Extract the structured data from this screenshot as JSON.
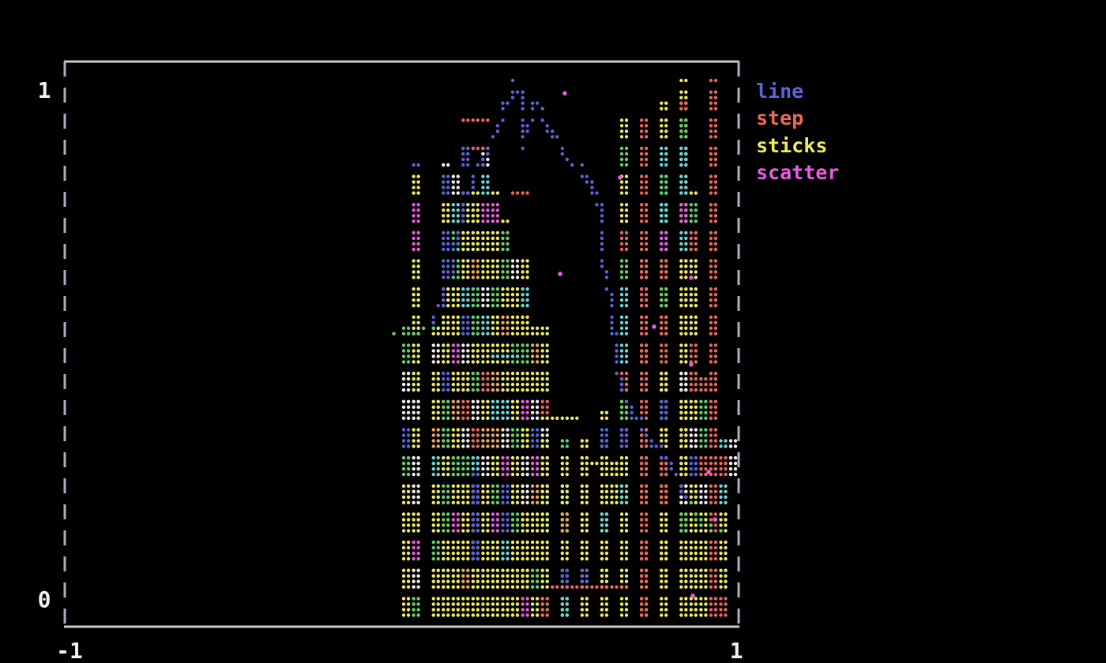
{
  "figure": {
    "background": "#000000",
    "border_solid_color": "#c9c9c9",
    "border_dash_color": "#a9b2c0"
  },
  "colors": {
    "blue": "#5b66de",
    "red": "#ee675d",
    "yellow": "#f1ee5e",
    "magenta": "#eb5ce3",
    "green": "#63d36c",
    "cyan": "#67dadb",
    "white": "#f2f2f2",
    "orange": "#efa75c",
    "label": "#f2f2f2"
  },
  "axis": {
    "y_top_label": "1",
    "y_bottom_label": "0",
    "x_left_label": "-1",
    "x_right_label": "1",
    "xlim": [
      -1,
      1
    ],
    "ylim": [
      0,
      1
    ]
  },
  "legend": {
    "position": "outside-top-right",
    "items": [
      {
        "label": "line",
        "color": "blue"
      },
      {
        "label": "step",
        "color": "red"
      },
      {
        "label": "sticks",
        "color": "yellow"
      },
      {
        "label": "scatter",
        "color": "magenta"
      }
    ]
  },
  "chart_data": {
    "type": "mixed-terminal-braille",
    "xlim": [
      -1,
      1
    ],
    "ylim": [
      0,
      1
    ],
    "grid": false,
    "series": [
      {
        "name": "line",
        "type": "line",
        "color": "blue",
        "points": [
          [
            -0.02,
            0.51
          ],
          [
            0.093,
            0.538
          ],
          [
            0.149,
            0.659
          ],
          [
            0.191,
            0.785
          ],
          [
            0.243,
            0.852
          ],
          [
            0.28,
            0.904
          ],
          [
            0.308,
            0.959
          ],
          [
            0.336,
            0.981
          ],
          [
            0.346,
            0.973
          ],
          [
            0.351,
            0.904
          ],
          [
            0.355,
            0.867
          ],
          [
            0.374,
            0.919
          ],
          [
            0.397,
            0.959
          ],
          [
            0.426,
            0.911
          ],
          [
            0.449,
            0.884
          ],
          [
            0.477,
            0.864
          ],
          [
            0.503,
            0.837
          ],
          [
            0.531,
            0.827
          ],
          [
            0.55,
            0.81
          ],
          [
            0.571,
            0.784
          ],
          [
            0.583,
            0.76
          ],
          [
            0.587,
            0.719
          ],
          [
            0.597,
            0.671
          ],
          [
            0.604,
            0.627
          ],
          [
            0.613,
            0.57
          ],
          [
            0.618,
            0.533
          ],
          [
            0.63,
            0.514
          ],
          [
            0.634,
            0.464
          ],
          [
            0.644,
            0.419
          ],
          [
            0.655,
            0.4
          ],
          [
            0.683,
            0.367
          ],
          [
            0.719,
            0.33
          ],
          [
            0.754,
            0.304
          ],
          [
            0.796,
            0.274
          ],
          [
            0.815,
            0.253
          ],
          [
            0.838,
            0.218
          ],
          [
            0.866,
            0.182
          ],
          [
            0.894,
            0.159
          ],
          [
            0.923,
            0.156
          ],
          [
            0.946,
            0.153
          ]
        ]
      },
      {
        "name": "step",
        "type": "step",
        "color": "red",
        "segments": [
          {
            "t": "h",
            "x1": 0.175,
            "x2": 0.245,
            "y": 0.926
          },
          {
            "t": "h",
            "x1": 0.175,
            "x2": 0.233,
            "y": 0.874
          },
          {
            "t": "h",
            "x1": 0.315,
            "x2": 0.355,
            "y": 0.778
          },
          {
            "t": "v",
            "x": 0.707,
            "y1": 0.0,
            "y2": 0.926
          },
          {
            "t": "v",
            "x": 0.932,
            "y1": 0.0,
            "y2": 1.0
          },
          {
            "t": "v",
            "x": 0.871,
            "y1": 0.407,
            "y2": 0.433
          },
          {
            "t": "h",
            "x1": 0.871,
            "x2": 0.913,
            "y": 0.407
          },
          {
            "t": "v",
            "x": 0.913,
            "y1": 0.407,
            "y2": 0.433
          },
          {
            "t": "h",
            "x1": 0.449,
            "x2": 0.547,
            "y": 0.03
          },
          {
            "t": "h",
            "x1": 0.562,
            "x2": 0.648,
            "y": 0.03
          }
        ]
      },
      {
        "name": "sticks",
        "type": "sticks",
        "color": "yellow",
        "points": [
          [
            -0.008,
            0.536
          ],
          [
            0.05,
            0.837
          ],
          [
            0.081,
            0.536
          ],
          [
            0.111,
            0.837
          ],
          [
            0.14,
            0.833
          ],
          [
            0.17,
            0.788
          ],
          [
            0.198,
            0.785
          ],
          [
            0.229,
            0.884
          ],
          [
            0.257,
            0.785
          ],
          [
            0.287,
            0.736
          ],
          [
            0.315,
            0.655
          ],
          [
            0.346,
            0.655
          ],
          [
            0.374,
            0.529
          ],
          [
            0.404,
            0.529
          ],
          [
            0.432,
            0.321
          ],
          [
            0.463,
            0.321
          ],
          [
            0.491,
            0.247
          ],
          [
            0.522,
            0.321
          ],
          [
            0.55,
            0.247
          ],
          [
            0.58,
            0.319
          ],
          [
            0.608,
            0.378
          ],
          [
            0.639,
            0.434
          ],
          [
            0.667,
            0.93
          ],
          [
            0.726,
            0.655
          ],
          [
            0.756,
            0.833
          ],
          [
            0.784,
            0.956
          ],
          [
            0.815,
            1.0
          ],
          [
            0.843,
            0.956
          ],
          [
            0.873,
            0.788
          ],
          [
            0.901,
            0.433
          ],
          [
            0.96,
            0.326
          ]
        ]
      },
      {
        "name": "scatter",
        "type": "scatter",
        "color": "magenta",
        "points": [
          [
            0.484,
            0.973
          ],
          [
            0.648,
            0.815
          ],
          [
            0.47,
            0.634
          ],
          [
            0.859,
            0.627
          ],
          [
            0.749,
            0.535
          ],
          [
            0.859,
            0.464
          ],
          [
            0.911,
            0.262
          ],
          [
            0.93,
            0.173
          ],
          [
            0.864,
            0.03
          ]
        ]
      }
    ],
    "extras": [
      {
        "color": "yellow",
        "t": "h",
        "x1": 0.432,
        "x2": 0.503,
        "y": 0.36
      },
      {
        "color": "yellow",
        "t": "h",
        "x1": 0.543,
        "x2": 0.625,
        "y": 0.281
      },
      {
        "color": "yellow",
        "t": "v",
        "x": 0.62,
        "y1": 0.237,
        "y2": 0.281
      },
      {
        "color": "blue",
        "t": "v",
        "x": 0.215,
        "y1": 0.104,
        "y2": 0.259
      },
      {
        "color": "blue",
        "t": "v",
        "x": 0.172,
        "y1": 0.856,
        "y2": 0.886
      },
      {
        "color": "cyan",
        "t": "h",
        "x1": 0.268,
        "x2": 0.325,
        "y": 0.481
      },
      {
        "color": "white",
        "t": "v",
        "x": 0.962,
        "y1": 0.248,
        "y2": 0.32
      }
    ],
    "overlap_note": "cells where series overlap render blended colors: green, cyan, white, orange"
  }
}
